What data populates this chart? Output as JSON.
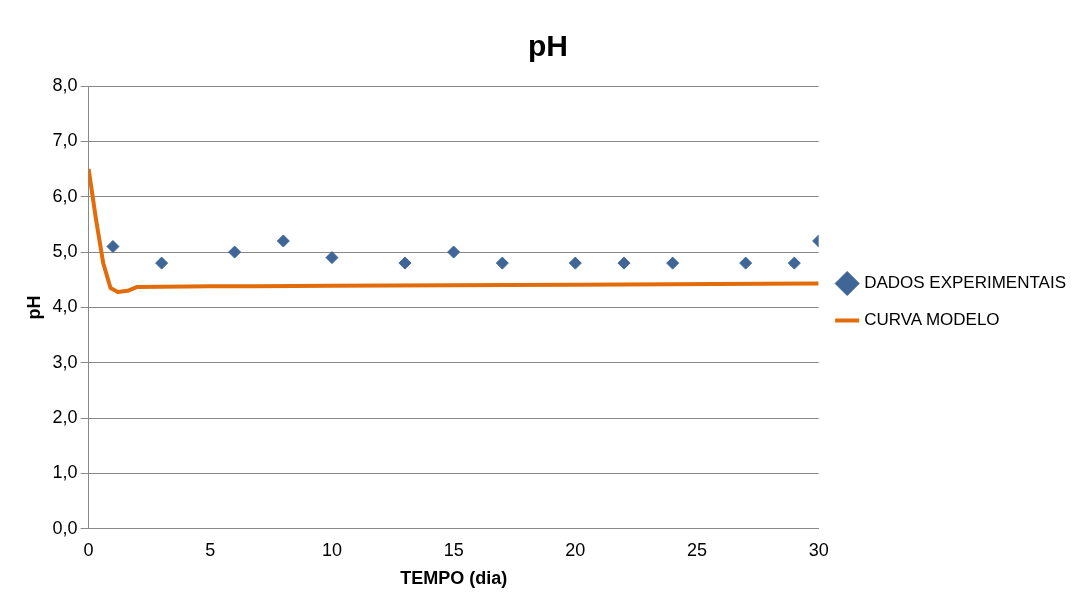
{
  "chart_data": {
    "type": "scatter",
    "title": "pH",
    "xlabel": "TEMPO (dia)",
    "ylabel": "pH",
    "xlim": [
      0,
      30
    ],
    "xticks": [
      0,
      5,
      10,
      15,
      20,
      25,
      30
    ],
    "ylim": [
      0,
      8
    ],
    "yticks": [
      {
        "value": 0,
        "label": "0,0"
      },
      {
        "value": 1,
        "label": "1,0"
      },
      {
        "value": 2,
        "label": "2,0"
      },
      {
        "value": 3,
        "label": "3,0"
      },
      {
        "value": 4,
        "label": "4,0"
      },
      {
        "value": 5,
        "label": "5,0"
      },
      {
        "value": 6,
        "label": "6,0"
      },
      {
        "value": 7,
        "label": "7,0"
      },
      {
        "value": 8,
        "label": "8,0"
      }
    ],
    "grid": "y",
    "legend": "right",
    "marker": "diamond",
    "series": [
      {
        "name": "DADOS EXPERIMENTAIS",
        "color": "#3f6696",
        "x": [
          1,
          3,
          6,
          8,
          10,
          13,
          15,
          17,
          20,
          22,
          24,
          27,
          29,
          30
        ],
        "values": [
          5.1,
          4.8,
          5.0,
          5.2,
          4.9,
          4.8,
          5.0,
          4.8,
          4.8,
          4.8,
          4.8,
          4.8,
          4.8,
          5.2
        ]
      },
      {
        "name": "CURVA MODELO",
        "type": "line",
        "color": "#e36c0a",
        "marker": "none",
        "line_style": "solid",
        "x": [
          0,
          0.3,
          0.6,
          0.9,
          1.2,
          1.6,
          2,
          5,
          10,
          20,
          30
        ],
        "values": [
          6.5,
          5.6,
          4.8,
          4.35,
          4.28,
          4.3,
          4.37,
          4.38,
          4.39,
          4.41,
          4.43
        ]
      }
    ]
  }
}
